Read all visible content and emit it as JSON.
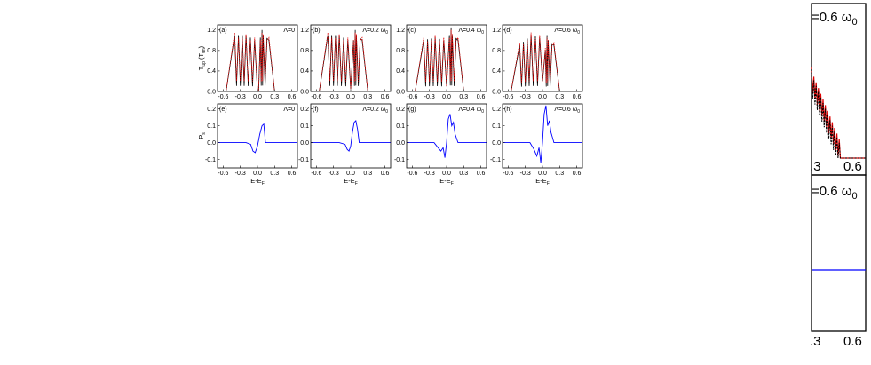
{
  "chart_data": [
    {
      "type": "line",
      "panel": "(a)",
      "annotation": "Λ=0",
      "ylabel": "T_up (T_dn)",
      "xlim": [
        -0.7,
        0.7
      ],
      "ylim": [
        0.0,
        1.3
      ],
      "xticks": [
        "-0.6",
        "-0.3",
        "0.0",
        "0.3",
        "0.6"
      ],
      "yticks": [
        "0.0",
        "0.4",
        "0.8",
        "1.2"
      ],
      "series": [
        {
          "color": "#000000",
          "x": [
            -0.55,
            -0.4,
            -0.2,
            -0.05,
            0.0,
            0.02,
            0.05,
            0.08,
            0.1,
            0.2,
            0.3
          ],
          "y": [
            0.0,
            1.1,
            1.1,
            1.0,
            0.0,
            0.0,
            1.05,
            1.2,
            1.1,
            1.0,
            0.0
          ]
        },
        {
          "color": "#e00000",
          "x": [
            -0.55,
            -0.4,
            -0.2,
            -0.05,
            0.0,
            0.02,
            0.05,
            0.08,
            0.1,
            0.2,
            0.3
          ],
          "y": [
            0.0,
            1.15,
            1.12,
            1.05,
            0.0,
            0.0,
            1.0,
            1.15,
            1.12,
            1.05,
            0.0
          ]
        }
      ]
    },
    {
      "type": "line",
      "panel": "(b)",
      "annotation": "Λ=0.2 ω0",
      "xlim": [
        -0.7,
        0.7
      ],
      "ylim": [
        0.0,
        1.3
      ],
      "xticks": [
        "-0.6",
        "-0.3",
        "0.0",
        "0.3",
        "0.6"
      ],
      "yticks": [
        "0.0",
        "0.4",
        "0.8",
        "1.2"
      ],
      "series": [
        {
          "color": "#000000",
          "x": [
            -0.55,
            -0.4,
            -0.2,
            -0.05,
            0.0,
            0.05,
            0.08,
            0.1,
            0.2,
            0.3
          ],
          "y": [
            0.0,
            1.1,
            1.1,
            1.0,
            0.05,
            1.0,
            1.2,
            1.1,
            1.0,
            0.0
          ]
        },
        {
          "color": "#e00000",
          "x": [
            -0.55,
            -0.4,
            -0.2,
            -0.05,
            0.0,
            0.05,
            0.08,
            0.1,
            0.2,
            0.3
          ],
          "y": [
            0.0,
            1.15,
            1.12,
            1.05,
            0.05,
            1.0,
            1.15,
            1.12,
            1.05,
            0.0
          ]
        }
      ]
    },
    {
      "type": "line",
      "panel": "(c)",
      "annotation": "Λ=0.4 ω0",
      "xlim": [
        -0.7,
        0.7
      ],
      "ylim": [
        0.0,
        1.3
      ],
      "xticks": [
        "-0.6",
        "-0.3",
        "0.0",
        "0.3",
        "0.6"
      ],
      "yticks": [
        "0.0",
        "0.4",
        "0.8",
        "1.2"
      ],
      "series": [
        {
          "color": "#000000",
          "x": [
            -0.55,
            -0.4,
            -0.2,
            -0.05,
            0.0,
            0.05,
            0.08,
            0.1,
            0.2,
            0.3
          ],
          "y": [
            0.0,
            1.0,
            1.05,
            1.0,
            0.1,
            1.1,
            1.25,
            1.1,
            1.0,
            0.0
          ]
        },
        {
          "color": "#e00000",
          "x": [
            -0.55,
            -0.4,
            -0.2,
            -0.05,
            0.0,
            0.05,
            0.08,
            0.1,
            0.2,
            0.3
          ],
          "y": [
            0.0,
            1.05,
            1.1,
            1.05,
            0.1,
            1.05,
            1.2,
            1.12,
            1.05,
            0.0
          ]
        }
      ]
    },
    {
      "type": "line",
      "panel": "(d)",
      "annotation": "Λ=0.6 ω0",
      "xlim": [
        -0.7,
        0.7
      ],
      "ylim": [
        0.0,
        1.3
      ],
      "xticks": [
        "-0.6",
        "-0.3",
        "0.0",
        "0.3",
        "0.6"
      ],
      "yticks": [
        "0.0",
        "0.4",
        "0.8",
        "1.2"
      ],
      "series": [
        {
          "color": "#000000",
          "x": [
            -0.55,
            -0.4,
            -0.2,
            -0.05,
            0.0,
            0.05,
            0.08,
            0.1,
            0.2,
            0.3
          ],
          "y": [
            0.0,
            0.9,
            1.1,
            1.05,
            0.2,
            0.8,
            1.1,
            1.0,
            0.9,
            0.0
          ]
        },
        {
          "color": "#e00000",
          "x": [
            -0.55,
            -0.4,
            -0.2,
            -0.05,
            0.0,
            0.05,
            0.08,
            0.1,
            0.2,
            0.3
          ],
          "y": [
            0.0,
            0.95,
            1.15,
            1.1,
            0.2,
            0.85,
            1.05,
            1.0,
            0.95,
            0.0
          ]
        }
      ]
    },
    {
      "type": "line",
      "panel": "(e)",
      "annotation": "Λ=0",
      "ylabel": "Ps",
      "xlabel": "E-EF",
      "xlim": [
        -0.7,
        0.7
      ],
      "ylim": [
        -0.15,
        0.23
      ],
      "xticks": [
        "-0.6",
        "-0.3",
        "0.0",
        "0.3",
        "0.6"
      ],
      "yticks": [
        "-0.1",
        "0.0",
        "0.1",
        "0.2"
      ],
      "series": [
        {
          "color": "#0000ff",
          "x": [
            -0.7,
            -0.2,
            -0.12,
            -0.08,
            -0.04,
            0.0,
            0.04,
            0.08,
            0.11,
            0.14,
            0.7
          ],
          "y": [
            0.0,
            0.0,
            -0.01,
            -0.05,
            -0.06,
            -0.02,
            0.05,
            0.1,
            0.11,
            0.0,
            0.0
          ]
        }
      ]
    },
    {
      "type": "line",
      "panel": "(f)",
      "annotation": "Λ=0.2 ω0",
      "xlabel": "E-EF",
      "xlim": [
        -0.7,
        0.7
      ],
      "ylim": [
        -0.15,
        0.23
      ],
      "xticks": [
        "-0.6",
        "-0.3",
        "0.0",
        "0.3",
        "0.6"
      ],
      "yticks": [
        "-0.1",
        "0.0",
        "0.1",
        "0.2"
      ],
      "series": [
        {
          "color": "#0000ff",
          "x": [
            -0.7,
            -0.2,
            -0.1,
            -0.06,
            -0.03,
            0.0,
            0.03,
            0.06,
            0.09,
            0.12,
            0.15,
            0.7
          ],
          "y": [
            0.0,
            0.0,
            -0.01,
            -0.04,
            -0.05,
            -0.02,
            0.06,
            0.12,
            0.13,
            0.08,
            0.0,
            0.0
          ]
        }
      ]
    },
    {
      "type": "line",
      "panel": "(g)",
      "annotation": "Λ=0.4 ω0",
      "xlabel": "E-EF",
      "xlim": [
        -0.7,
        0.7
      ],
      "ylim": [
        -0.15,
        0.23
      ],
      "xticks": [
        "-0.6",
        "-0.3",
        "0.0",
        "0.3",
        "0.6"
      ],
      "yticks": [
        "-0.1",
        "0.0",
        "0.1",
        "0.2"
      ],
      "series": [
        {
          "color": "#0000ff",
          "x": [
            -0.7,
            -0.22,
            -0.15,
            -0.1,
            -0.06,
            -0.03,
            0.0,
            0.03,
            0.06,
            0.09,
            0.12,
            0.15,
            0.2,
            0.7
          ],
          "y": [
            0.0,
            0.0,
            -0.03,
            -0.05,
            -0.03,
            -0.09,
            0.0,
            0.14,
            0.17,
            0.1,
            0.12,
            0.05,
            0.0,
            0.0
          ]
        }
      ]
    },
    {
      "type": "line",
      "panel": "(h)",
      "annotation": "Λ=0.6 ω0",
      "xlabel": "E-EF",
      "xlim": [
        -0.7,
        0.7
      ],
      "ylim": [
        -0.15,
        0.23
      ],
      "xticks": [
        "-0.6",
        "-0.3",
        "0.0",
        "0.3",
        "0.6"
      ],
      "yticks": [
        "-0.1",
        "0.0",
        "0.1",
        "0.2"
      ],
      "series": [
        {
          "color": "#0000ff",
          "x": [
            -0.7,
            -0.22,
            -0.15,
            -0.1,
            -0.06,
            -0.03,
            0.0,
            0.03,
            0.06,
            0.09,
            0.12,
            0.15,
            0.2,
            0.7
          ],
          "y": [
            0.0,
            0.0,
            -0.04,
            -0.08,
            -0.03,
            -0.12,
            0.0,
            0.17,
            0.22,
            0.1,
            0.13,
            0.06,
            0.0,
            0.0
          ]
        }
      ]
    }
  ],
  "crop_top_label": "=0.6 ω",
  "crop_top_sub": "0",
  "crop_bottom_label": "=0.6 ω",
  "crop_bottom_sub": "0",
  "crop_top_ticks": [
    ".3",
    "0.6"
  ],
  "crop_bottom_ticks": [
    ".3",
    "0.6"
  ]
}
